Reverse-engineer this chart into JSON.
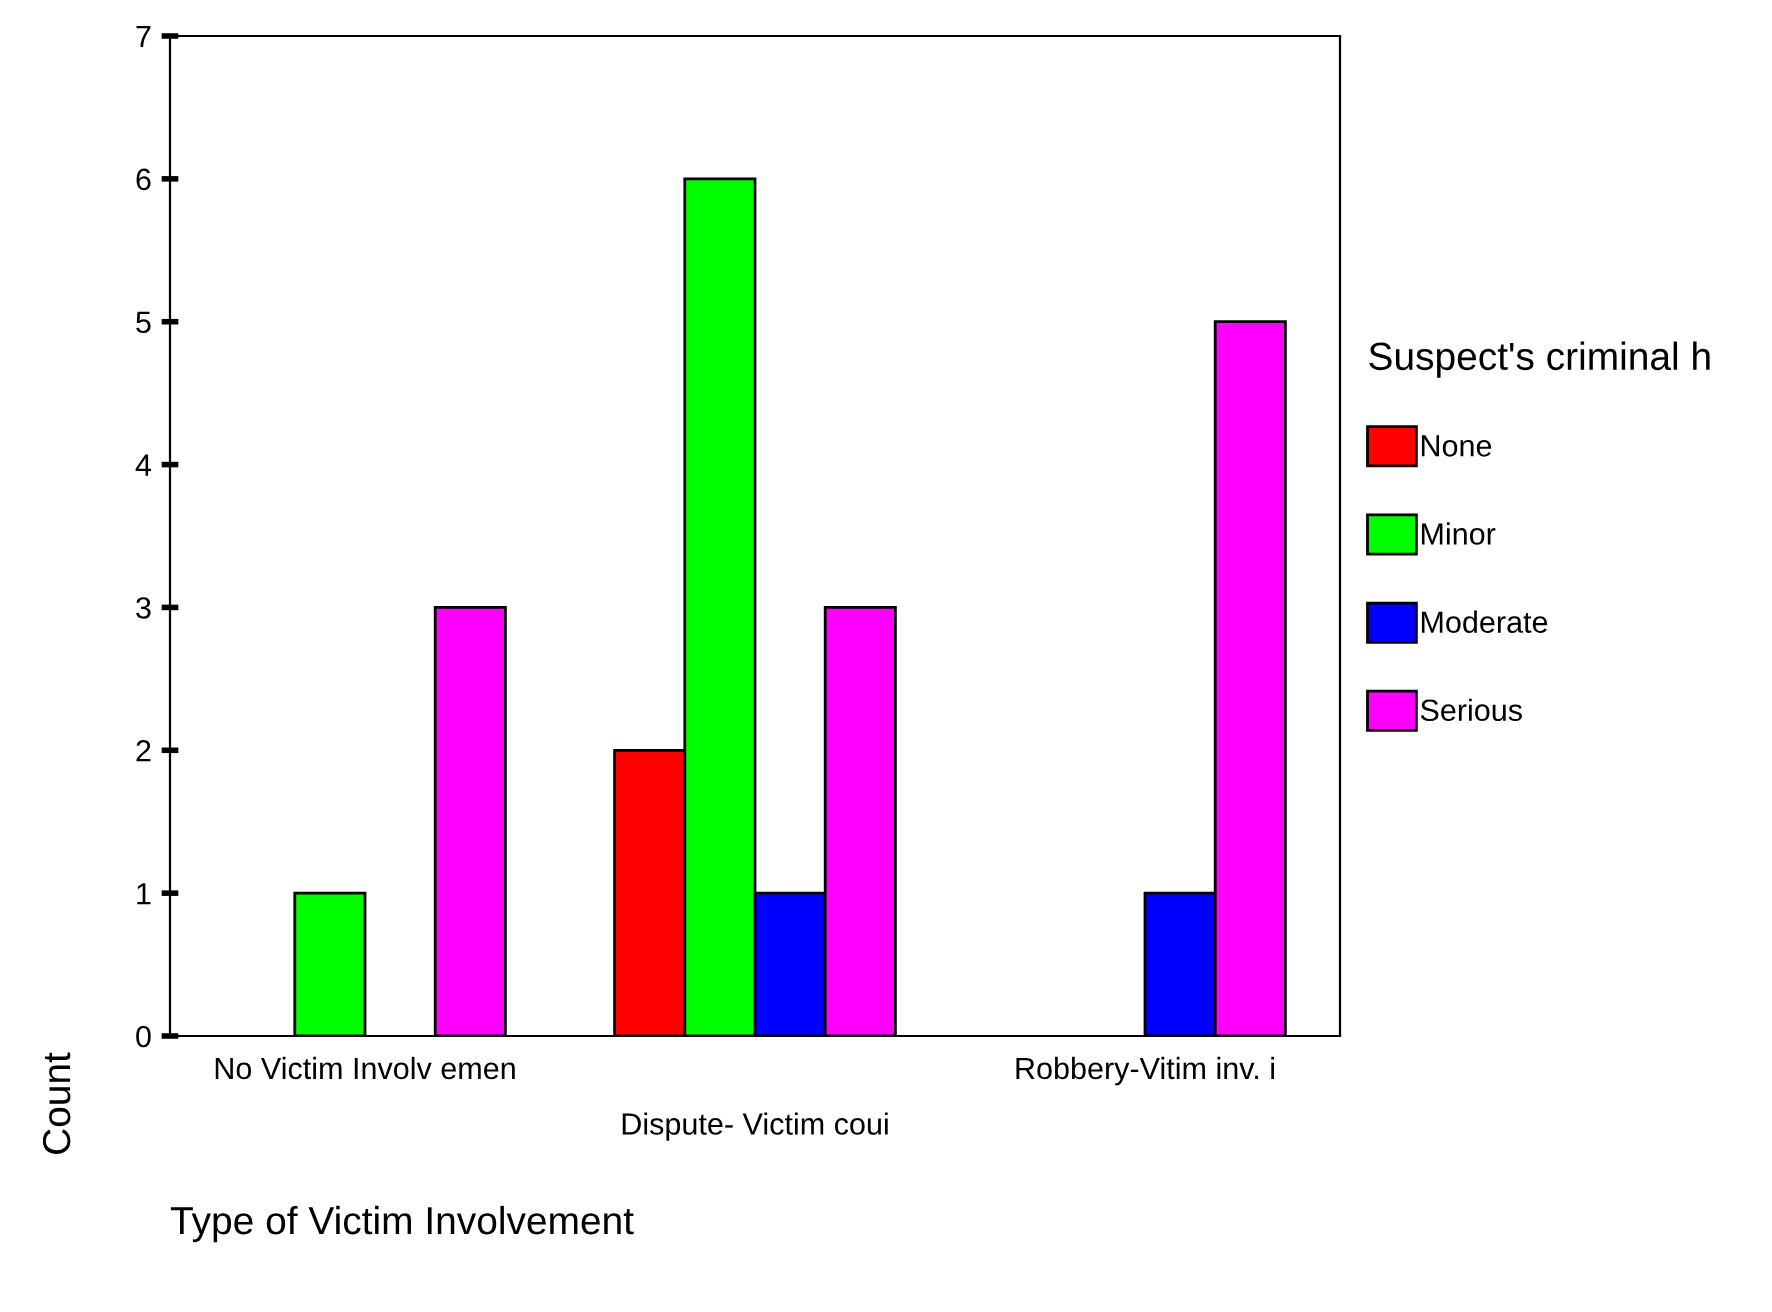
{
  "chart_data": {
    "type": "bar",
    "xlabel": "Type of Victim Involvement",
    "ylabel": "Count",
    "legend_title": "Suspect's criminal h",
    "categories": [
      "No Victim Involv emen",
      "Dispute- Victim coui",
      "Robbery-Vitim inv. i"
    ],
    "series": [
      {
        "name": "None",
        "color": "#ff0000",
        "values": [
          0,
          2,
          0
        ]
      },
      {
        "name": "Minor",
        "color": "#00ff00",
        "values": [
          1,
          6,
          0
        ]
      },
      {
        "name": "Moderate",
        "color": "#0000ff",
        "values": [
          0,
          1,
          1
        ]
      },
      {
        "name": "Serious",
        "color": "#ff00ff",
        "values": [
          3,
          3,
          5
        ]
      }
    ],
    "ylim": [
      0,
      7
    ],
    "yticks": [
      0,
      1,
      2,
      3,
      4,
      5,
      6,
      7
    ],
    "grid": false,
    "legend": "right"
  }
}
